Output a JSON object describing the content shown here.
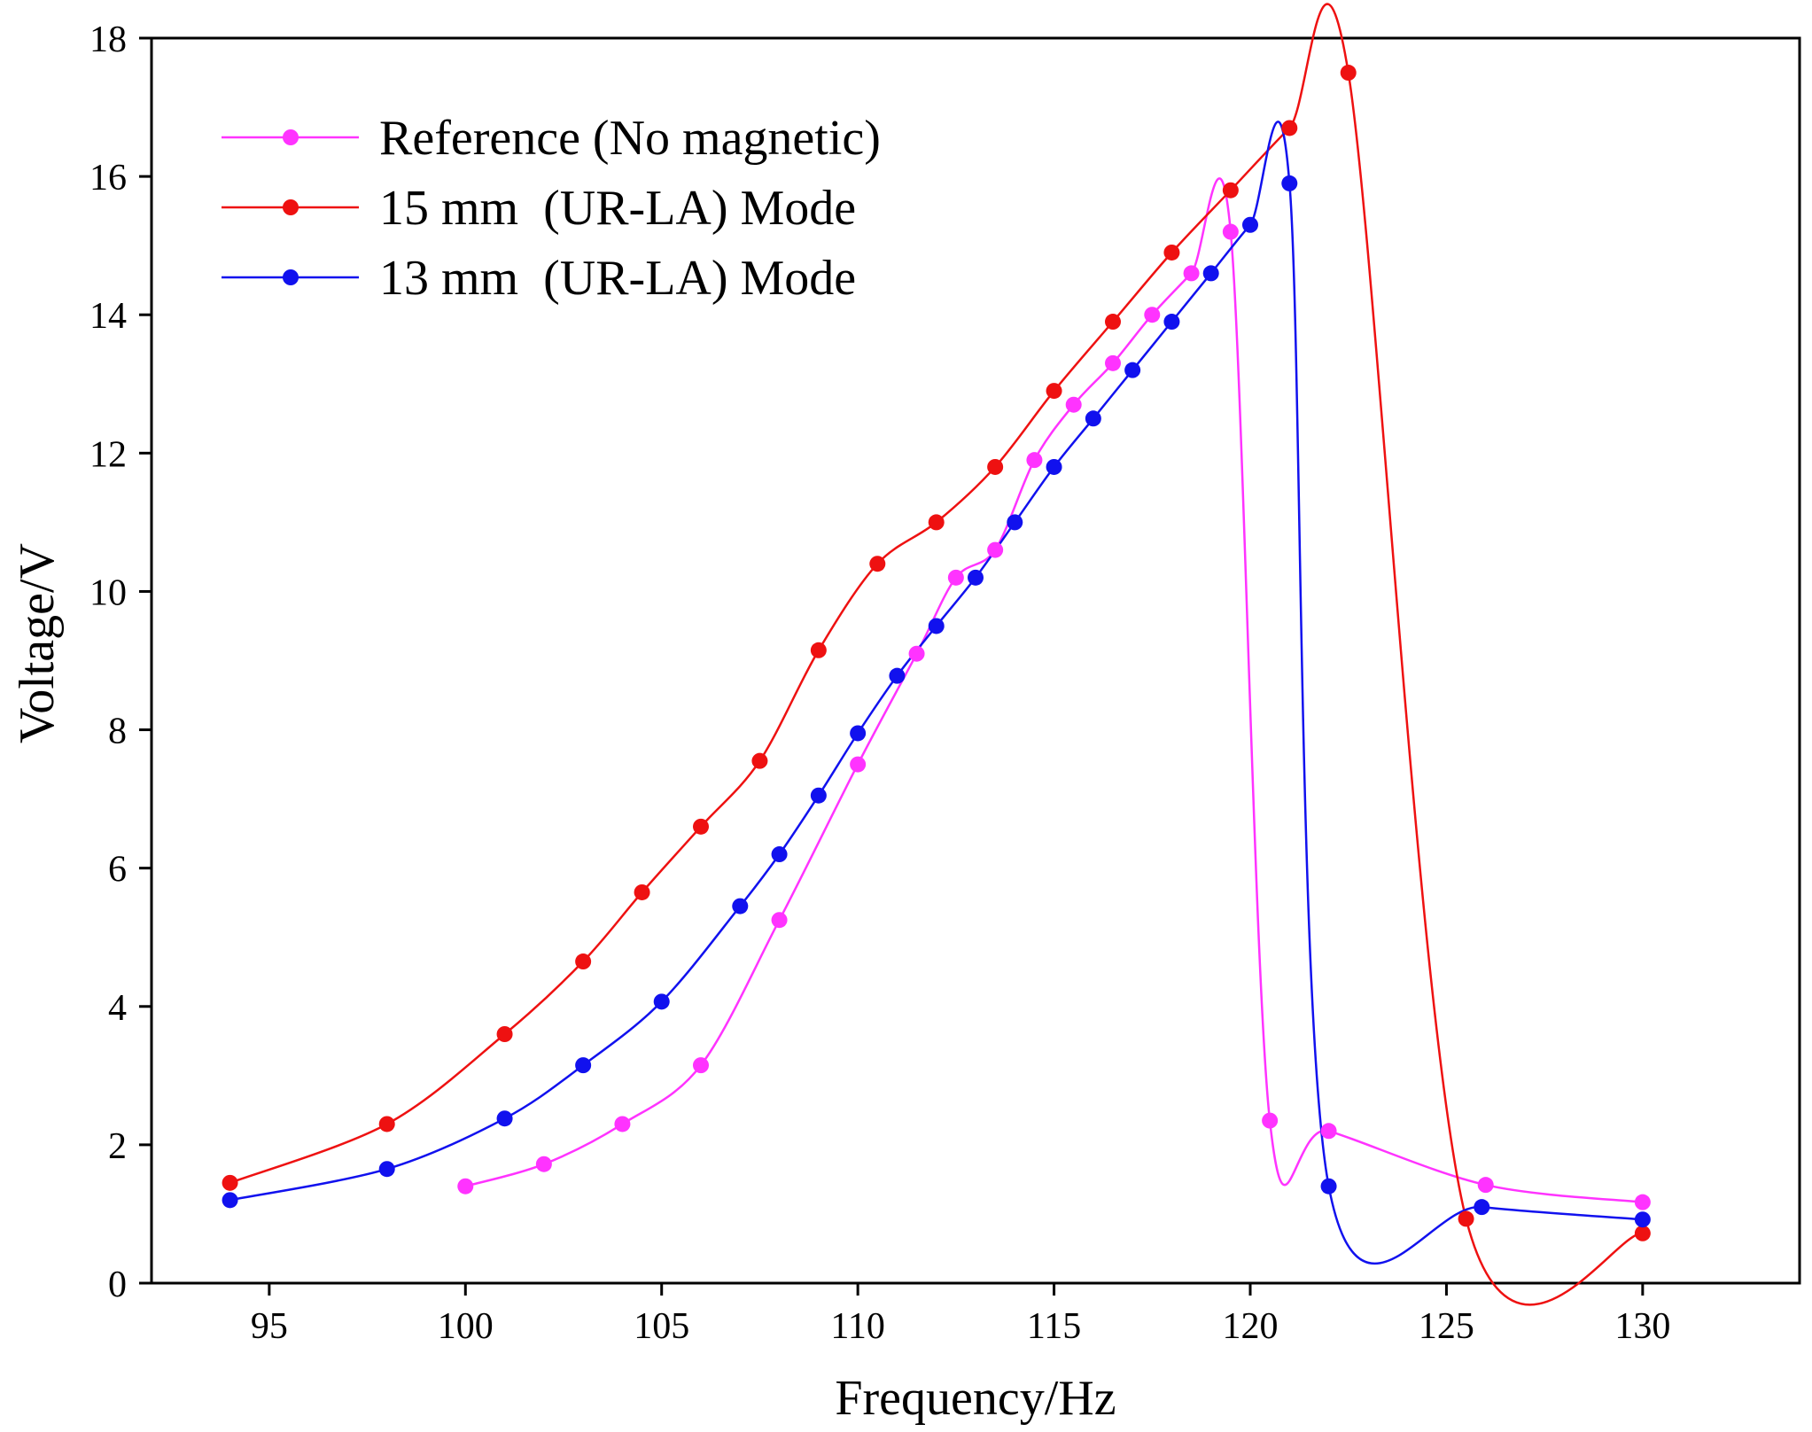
{
  "chart_data": {
    "type": "line",
    "title": "",
    "xlabel": "Frequency/Hz",
    "ylabel": "Voltage/V",
    "xlim": [
      92,
      134
    ],
    "ylim": [
      0,
      18
    ],
    "xticks": [
      95,
      100,
      105,
      110,
      115,
      120,
      125,
      130
    ],
    "yticks": [
      0,
      2,
      4,
      6,
      8,
      10,
      12,
      14,
      16,
      18
    ],
    "grid": false,
    "legend_position": "top-left",
    "series": [
      {
        "name": "Reference (No magnetic)",
        "color": "#ff33ff",
        "points": [
          [
            100,
            1.4
          ],
          [
            102,
            1.72
          ],
          [
            104,
            2.3
          ],
          [
            106,
            3.15
          ],
          [
            108,
            5.25
          ],
          [
            110,
            7.5
          ],
          [
            111.5,
            9.1
          ],
          [
            112.5,
            10.2
          ],
          [
            113.5,
            10.6
          ],
          [
            114.5,
            11.9
          ],
          [
            115.5,
            12.7
          ],
          [
            116.5,
            13.3
          ],
          [
            117.5,
            14.0
          ],
          [
            118.5,
            14.6
          ],
          [
            119.5,
            15.2
          ],
          [
            120.5,
            2.35
          ],
          [
            122,
            2.2
          ],
          [
            126,
            1.42
          ],
          [
            130,
            1.17
          ]
        ]
      },
      {
        "name": "15 mm  (UR-LA) Mode",
        "color": "#ee1111",
        "points": [
          [
            94,
            1.45
          ],
          [
            98,
            2.3
          ],
          [
            101,
            3.6
          ],
          [
            103,
            4.65
          ],
          [
            104.5,
            5.65
          ],
          [
            106,
            6.6
          ],
          [
            107.5,
            7.55
          ],
          [
            109,
            9.15
          ],
          [
            110.5,
            10.4
          ],
          [
            112,
            11.0
          ],
          [
            113.5,
            11.8
          ],
          [
            115,
            12.9
          ],
          [
            116.5,
            13.9
          ],
          [
            118,
            14.9
          ],
          [
            119.5,
            15.8
          ],
          [
            121,
            16.7
          ],
          [
            122.5,
            17.5
          ],
          [
            125.5,
            0.93
          ],
          [
            130,
            0.72
          ]
        ]
      },
      {
        "name": "13 mm  (UR-LA) Mode",
        "color": "#1111ee",
        "points": [
          [
            94,
            1.2
          ],
          [
            98,
            1.65
          ],
          [
            101,
            2.38
          ],
          [
            103,
            3.15
          ],
          [
            105,
            4.07
          ],
          [
            107,
            5.45
          ],
          [
            108,
            6.2
          ],
          [
            109,
            7.05
          ],
          [
            110,
            7.95
          ],
          [
            111,
            8.78
          ],
          [
            112,
            9.5
          ],
          [
            113,
            10.2
          ],
          [
            114,
            11.0
          ],
          [
            115,
            11.8
          ],
          [
            116,
            12.5
          ],
          [
            117,
            13.2
          ],
          [
            118,
            13.9
          ],
          [
            119,
            14.6
          ],
          [
            120,
            15.3
          ],
          [
            121,
            15.9
          ],
          [
            122,
            1.4
          ],
          [
            125.9,
            1.1
          ],
          [
            130,
            0.92
          ]
        ]
      }
    ]
  }
}
